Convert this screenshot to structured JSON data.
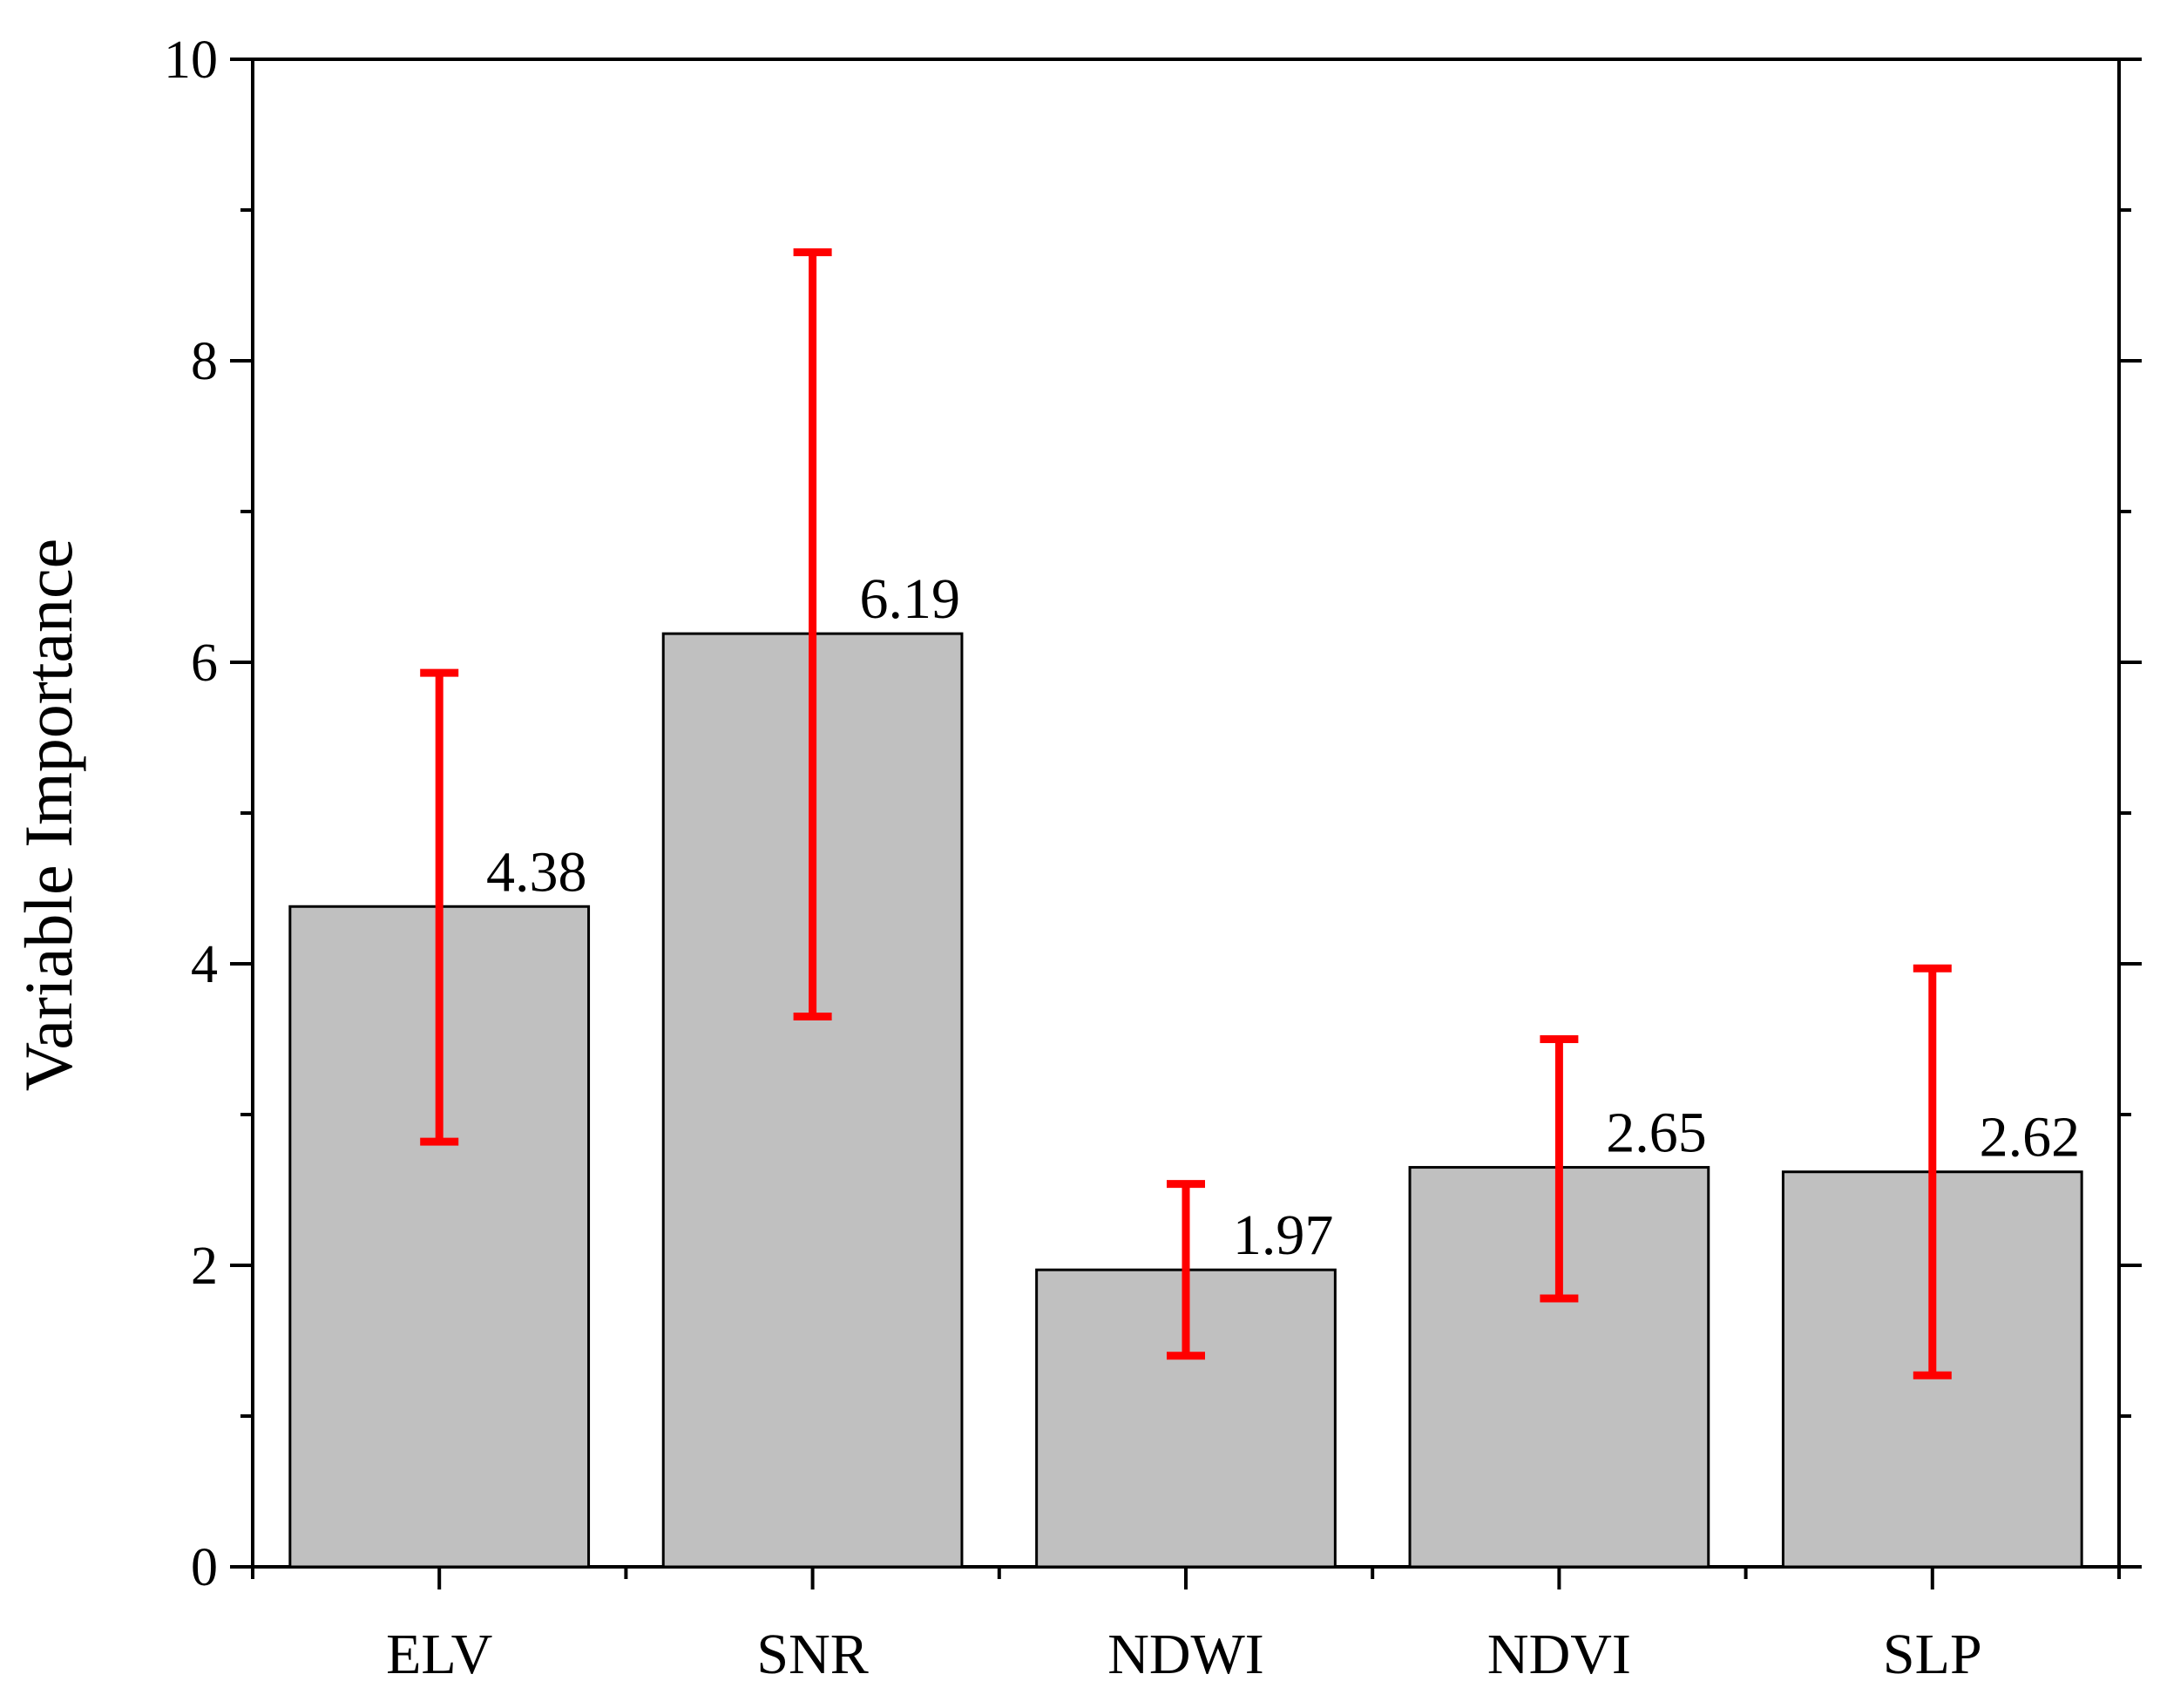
{
  "chart_data": {
    "type": "bar",
    "ylabel": "Variable Importance",
    "xlabel": "",
    "categories": [
      "ELV",
      "SNR",
      "NDWI",
      "NDVI",
      "SLP"
    ],
    "values": [
      4.38,
      6.19,
      1.97,
      2.65,
      2.62
    ],
    "value_labels": [
      "4.38",
      "6.19",
      "1.97",
      "2.65",
      "2.62"
    ],
    "error_lower": [
      2.82,
      3.65,
      1.4,
      1.78,
      1.27
    ],
    "error_upper": [
      5.93,
      8.72,
      2.54,
      3.5,
      3.97
    ],
    "ylim": [
      0,
      10
    ],
    "y_ticks": [
      0,
      2,
      4,
      6,
      8,
      10
    ],
    "y_tick_labels": [
      "0",
      "2",
      "4",
      "6",
      "8",
      "10"
    ],
    "y_minor_ticks": [
      1,
      3,
      5,
      7,
      9
    ],
    "grid": false,
    "colors": {
      "bar_fill": "#c0c0c0",
      "bar_stroke": "#000000",
      "error_bar": "#ff0000",
      "axis": "#000000"
    }
  }
}
